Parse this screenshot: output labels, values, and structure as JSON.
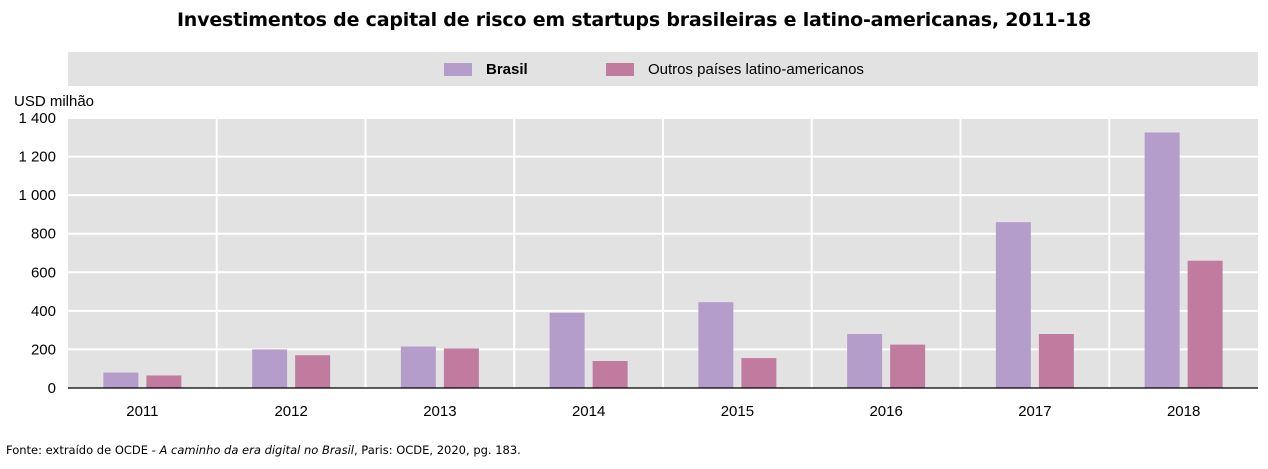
{
  "title": "Investimentos de capital de risco em startups brasileiras e latino-americanas, 2011-18",
  "footnote": {
    "prefix": "Fonte: extraído de OCDE - ",
    "italic": "A caminho da era digital no Brasil",
    "suffix": ", Paris: OCDE, 2020,  pg. 183."
  },
  "chart_data": {
    "type": "bar",
    "title": "Investimentos de capital de risco em startups brasileiras e latino-americanas, 2011-18",
    "ylabel": "USD  milhão",
    "xlabel": "",
    "ylim": [
      0,
      1400
    ],
    "yticks": [
      0,
      200,
      400,
      600,
      800,
      1000,
      1200,
      1400
    ],
    "ytick_labels": [
      "0",
      "200",
      "400",
      "600",
      "800",
      "1 000",
      "1 200",
      "1 400"
    ],
    "categories": [
      "2011",
      "2012",
      "2013",
      "2014",
      "2015",
      "2016",
      "2017",
      "2018"
    ],
    "series": [
      {
        "name": "Brasil",
        "color": "#b59dcb",
        "values": [
          80,
          200,
          215,
          390,
          445,
          280,
          860,
          1325
        ]
      },
      {
        "name": "Outros países latino-americanos",
        "color": "#c17b9f",
        "values": [
          65,
          170,
          205,
          140,
          155,
          225,
          280,
          660
        ]
      }
    ],
    "grid": true,
    "legend_position": "top"
  }
}
